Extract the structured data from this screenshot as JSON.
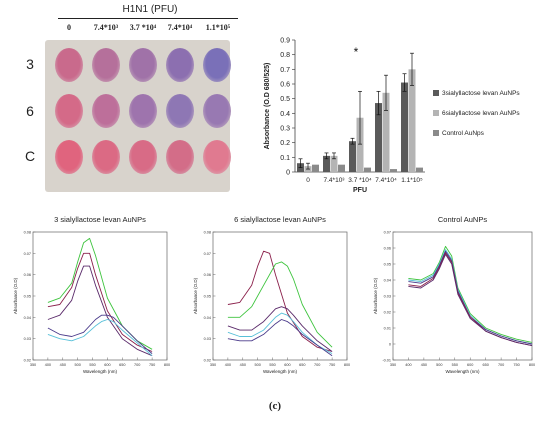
{
  "plate": {
    "title": "H1N1 (PFU)",
    "columns": [
      "0",
      "7.4*10³",
      "3.7 *10⁴",
      "7.4*10⁴",
      "1.1*10⁵"
    ],
    "rows": [
      {
        "label": "3",
        "wells": [
          "#c96a8c",
          "#b5709b",
          "#a072a8",
          "#8c6fb0",
          "#7a70b8"
        ]
      },
      {
        "label": "6",
        "wells": [
          "#d46a88",
          "#bd6f9a",
          "#9e74ad",
          "#8e77b4",
          "#9879b2"
        ]
      },
      {
        "label": "C",
        "wells": [
          "#e0647e",
          "#db6a84",
          "#d86b86",
          "#d36d88",
          "#e07a90"
        ]
      }
    ]
  },
  "chart_data": [
    {
      "type": "bar",
      "ylabel": "Absorbance (O.D 680/525)",
      "xlabel": "PFU",
      "categories": [
        "0",
        "7.4*10³",
        "3.7 *10⁴",
        "7.4*10⁴",
        "1.1*10⁵"
      ],
      "ylim": [
        0,
        0.9
      ],
      "yticks": [
        "0",
        "0.1",
        "0.2",
        "0.3",
        "0.4",
        "0.5",
        "0.6",
        "0.7",
        "0.8",
        "0.9"
      ],
      "annotation": "*",
      "annotation_category": 2,
      "legend_position": "right",
      "series": [
        {
          "name": "3sialyllactose levan AuNPs",
          "color": "#5a5a5a",
          "values": [
            0.06,
            0.11,
            0.21,
            0.47,
            0.61
          ],
          "errors": [
            0.03,
            0.02,
            0.02,
            0.08,
            0.06
          ]
        },
        {
          "name": "6sialyllactose levan AuNPs",
          "color": "#b4b4b4",
          "values": [
            0.04,
            0.11,
            0.37,
            0.54,
            0.7
          ],
          "errors": [
            0.02,
            0.02,
            0.18,
            0.12,
            0.11
          ]
        },
        {
          "name": "Control AuNps",
          "color": "#8a8a8a",
          "values": [
            0.05,
            0.05,
            0.03,
            0.02,
            0.03
          ],
          "errors": [
            0.0,
            0.0,
            0.0,
            0.0,
            0.0
          ]
        }
      ]
    },
    {
      "type": "line",
      "title": "3 sialyllactose levan AuNPs",
      "xlabel": "Wavelength (nm)",
      "ylabel": "Absorbance (O.D)",
      "xlim": [
        350,
        800
      ],
      "ylim": [
        0.02,
        0.08
      ],
      "xticks": [
        "350",
        "400",
        "450",
        "500",
        "550",
        "600",
        "650",
        "700",
        "750",
        "800"
      ],
      "yticks": [
        "0.02",
        "0.03",
        "0.04",
        "0.05",
        "0.06",
        "0.07",
        "0.08"
      ],
      "series": [
        {
          "color": "#3ec43e",
          "x": [
            400,
            440,
            480,
            500,
            520,
            540,
            560,
            600,
            650,
            700,
            750
          ],
          "y": [
            0.047,
            0.049,
            0.056,
            0.066,
            0.075,
            0.077,
            0.069,
            0.049,
            0.036,
            0.029,
            0.025
          ]
        },
        {
          "color": "#8a1f4a",
          "x": [
            400,
            440,
            480,
            500,
            520,
            540,
            560,
            600,
            650,
            700,
            750
          ],
          "y": [
            0.045,
            0.046,
            0.054,
            0.063,
            0.07,
            0.07,
            0.06,
            0.043,
            0.032,
            0.027,
            0.024
          ]
        },
        {
          "color": "#5a2a6a",
          "x": [
            400,
            440,
            480,
            500,
            520,
            540,
            560,
            600,
            650,
            700,
            750
          ],
          "y": [
            0.039,
            0.041,
            0.048,
            0.057,
            0.064,
            0.064,
            0.055,
            0.04,
            0.03,
            0.025,
            0.022
          ]
        },
        {
          "color": "#4a3a8a",
          "x": [
            400,
            440,
            480,
            520,
            560,
            580,
            600,
            620,
            650,
            700,
            750
          ],
          "y": [
            0.035,
            0.032,
            0.031,
            0.033,
            0.039,
            0.041,
            0.041,
            0.04,
            0.036,
            0.029,
            0.023
          ]
        },
        {
          "color": "#58c0d8",
          "x": [
            400,
            440,
            480,
            520,
            560,
            580,
            600,
            620,
            650,
            700,
            750
          ],
          "y": [
            0.032,
            0.03,
            0.029,
            0.031,
            0.036,
            0.038,
            0.039,
            0.038,
            0.034,
            0.028,
            0.022
          ]
        }
      ]
    },
    {
      "type": "line",
      "title": "6 sialyllactose levan AuNPs",
      "xlabel": "Wavelength (nm)",
      "ylabel": "Absorbance (O.D)",
      "xlim": [
        350,
        800
      ],
      "ylim": [
        0.02,
        0.08
      ],
      "xticks": [
        "350",
        "400",
        "450",
        "500",
        "550",
        "600",
        "650",
        "700",
        "750",
        "800"
      ],
      "yticks": [
        "0.02",
        "0.03",
        "0.04",
        "0.05",
        "0.06",
        "0.07",
        "0.08"
      ],
      "series": [
        {
          "color": "#8a1f4a",
          "x": [
            400,
            440,
            480,
            500,
            520,
            540,
            560,
            600,
            650,
            700,
            750
          ],
          "y": [
            0.046,
            0.047,
            0.055,
            0.064,
            0.071,
            0.07,
            0.06,
            0.042,
            0.031,
            0.026,
            0.024
          ]
        },
        {
          "color": "#3ec43e",
          "x": [
            400,
            440,
            480,
            520,
            560,
            580,
            600,
            620,
            650,
            700,
            750
          ],
          "y": [
            0.04,
            0.04,
            0.045,
            0.055,
            0.065,
            0.066,
            0.064,
            0.058,
            0.046,
            0.033,
            0.026
          ]
        },
        {
          "color": "#5a2a6a",
          "x": [
            400,
            440,
            480,
            520,
            560,
            580,
            600,
            620,
            650,
            700,
            750
          ],
          "y": [
            0.036,
            0.034,
            0.034,
            0.038,
            0.044,
            0.045,
            0.044,
            0.041,
            0.036,
            0.029,
            0.024
          ]
        },
        {
          "color": "#58c0d8",
          "x": [
            400,
            440,
            480,
            520,
            560,
            580,
            600,
            620,
            650,
            700,
            750
          ],
          "y": [
            0.033,
            0.031,
            0.031,
            0.034,
            0.04,
            0.042,
            0.041,
            0.038,
            0.033,
            0.027,
            0.023
          ]
        },
        {
          "color": "#4a3a8a",
          "x": [
            400,
            440,
            480,
            520,
            560,
            580,
            600,
            620,
            650,
            700,
            750
          ],
          "y": [
            0.03,
            0.029,
            0.029,
            0.032,
            0.037,
            0.039,
            0.038,
            0.036,
            0.032,
            0.027,
            0.022
          ]
        }
      ]
    },
    {
      "type": "line",
      "title": "Control AuNPs",
      "xlabel": "Wavelength (nm)",
      "ylabel": "Absorbance (O.D)",
      "xlim": [
        350,
        800
      ],
      "ylim": [
        -0.01,
        0.07
      ],
      "xticks": [
        "350",
        "400",
        "450",
        "500",
        "550",
        "600",
        "650",
        "700",
        "750",
        "800"
      ],
      "yticks": [
        "-0.01",
        "0",
        "0.01",
        "0.02",
        "0.03",
        "0.04",
        "0.05",
        "0.06",
        "0.07"
      ],
      "series": [
        {
          "color": "#3ec43e",
          "x": [
            400,
            440,
            480,
            500,
            520,
            540,
            560,
            600,
            650,
            700,
            750,
            800
          ],
          "y": [
            0.041,
            0.04,
            0.044,
            0.051,
            0.061,
            0.055,
            0.035,
            0.019,
            0.01,
            0.006,
            0.003,
            0.001
          ]
        },
        {
          "color": "#58c0d8",
          "x": [
            400,
            440,
            480,
            500,
            520,
            540,
            560,
            600,
            650,
            700,
            750,
            800
          ],
          "y": [
            0.04,
            0.039,
            0.043,
            0.05,
            0.059,
            0.053,
            0.034,
            0.018,
            0.009,
            0.005,
            0.002,
            0.0
          ]
        },
        {
          "color": "#4a3a8a",
          "x": [
            400,
            440,
            480,
            500,
            520,
            540,
            560,
            600,
            650,
            700,
            750,
            800
          ],
          "y": [
            0.039,
            0.038,
            0.042,
            0.049,
            0.058,
            0.052,
            0.033,
            0.017,
            0.009,
            0.005,
            0.002,
            0.0
          ]
        },
        {
          "color": "#8a1f4a",
          "x": [
            400,
            440,
            480,
            500,
            520,
            540,
            560,
            600,
            650,
            700,
            750,
            800
          ],
          "y": [
            0.037,
            0.036,
            0.041,
            0.048,
            0.057,
            0.051,
            0.032,
            0.017,
            0.008,
            0.004,
            0.001,
            -0.001
          ]
        },
        {
          "color": "#5a2a6a",
          "x": [
            400,
            440,
            480,
            500,
            520,
            540,
            560,
            600,
            650,
            700,
            750,
            800
          ],
          "y": [
            0.036,
            0.035,
            0.04,
            0.047,
            0.056,
            0.05,
            0.031,
            0.016,
            0.008,
            0.004,
            0.001,
            -0.001
          ]
        }
      ]
    }
  ],
  "caption": "(c)"
}
